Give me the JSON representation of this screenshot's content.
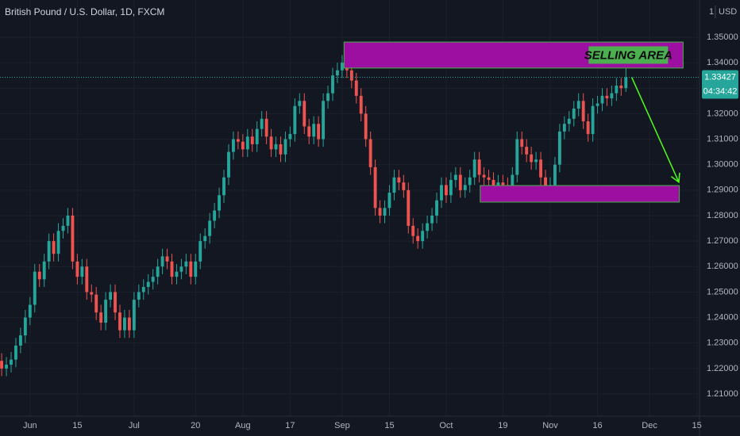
{
  "chart_data": {
    "type": "candlestick",
    "title": "British Pound / U.S. Dollar, 1D, FXCM",
    "currency": "USD",
    "scale_prefix": "1",
    "countdown": "04:34:42",
    "up_color": "#26a69a",
    "down_color": "#ef5350",
    "grid": true,
    "xlim": [
      -0.35,
      147.4
    ],
    "ylim": [
      1.2013,
      1.3646
    ],
    "xticks": [
      {
        "value": 6,
        "label": "Jun"
      },
      {
        "value": 16,
        "label": "15"
      },
      {
        "value": 28,
        "label": "Jul"
      },
      {
        "value": 41,
        "label": "20"
      },
      {
        "value": 51,
        "label": "Aug"
      },
      {
        "value": 61,
        "label": "17"
      },
      {
        "value": 72,
        "label": "Sep"
      },
      {
        "value": 82,
        "label": "15"
      },
      {
        "value": 94,
        "label": "Oct"
      },
      {
        "value": 106,
        "label": "19"
      },
      {
        "value": 116,
        "label": "Nov"
      },
      {
        "value": 126,
        "label": "16"
      },
      {
        "value": 137,
        "label": "Dec"
      },
      {
        "value": 147,
        "label": "15"
      }
    ],
    "yticks": [
      {
        "value": 1.21,
        "label": "1.21000"
      },
      {
        "value": 1.22,
        "label": "1.22000"
      },
      {
        "value": 1.23,
        "label": "1.23000"
      },
      {
        "value": 1.24,
        "label": "1.24000"
      },
      {
        "value": 1.25,
        "label": "1.25000"
      },
      {
        "value": 1.26,
        "label": "1.26000"
      },
      {
        "value": 1.27,
        "label": "1.27000"
      },
      {
        "value": 1.28,
        "label": "1.28000"
      },
      {
        "value": 1.29,
        "label": "1.29000"
      },
      {
        "value": 1.3,
        "label": "1.30000"
      },
      {
        "value": 1.31,
        "label": "1.31000"
      },
      {
        "value": 1.32,
        "label": "1.32000"
      },
      {
        "value": 1.33,
        "label": "1.33000"
      },
      {
        "value": 1.34,
        "label": "1.34000"
      },
      {
        "value": 1.35,
        "label": "1.35000"
      }
    ],
    "open": [
      1.223,
      1.22,
      1.2215,
      1.2235,
      1.229,
      1.233,
      1.24,
      1.245,
      1.258,
      1.255,
      1.262,
      1.27,
      1.265,
      1.274,
      1.276,
      1.28,
      1.262,
      1.256,
      1.26,
      1.25,
      1.249,
      1.242,
      1.238,
      1.247,
      1.25,
      1.242,
      1.235,
      1.24,
      1.235,
      1.247,
      1.25,
      1.252,
      1.254,
      1.256,
      1.26,
      1.264,
      1.262,
      1.256,
      1.258,
      1.26,
      1.262,
      1.256,
      1.262,
      1.27,
      1.272,
      1.278,
      1.282,
      1.288,
      1.295,
      1.305,
      1.31,
      1.309,
      1.306,
      1.311,
      1.308,
      1.314,
      1.318,
      1.311,
      1.306,
      1.308,
      1.304,
      1.31,
      1.312,
      1.323,
      1.325,
      1.315,
      1.311,
      1.316,
      1.31,
      1.325,
      1.328,
      1.335,
      1.337,
      1.34,
      1.337,
      1.333,
      1.327,
      1.32,
      1.31,
      1.299,
      1.283,
      1.28,
      1.283,
      1.289,
      1.295,
      1.293,
      1.29,
      1.276,
      1.272,
      1.27,
      1.274,
      1.277,
      1.28,
      1.286,
      1.292,
      1.288,
      1.294,
      1.296,
      1.29,
      1.292,
      1.295,
      1.302,
      1.296,
      1.295,
      1.294,
      1.29,
      1.293,
      1.292,
      1.29,
      1.296,
      1.31,
      1.307,
      1.304,
      1.301,
      1.302,
      1.295,
      1.29,
      1.292,
      1.3,
      1.313,
      1.316,
      1.318,
      1.322,
      1.325,
      1.317,
      1.312,
      1.323,
      1.324,
      1.327,
      1.326,
      1.328,
      1.331,
      1.33
    ],
    "high": [
      1.226,
      1.2245,
      1.2265,
      1.232,
      1.236,
      1.243,
      1.248,
      1.261,
      1.261,
      1.265,
      1.273,
      1.273,
      1.277,
      1.279,
      1.283,
      1.283,
      1.265,
      1.263,
      1.263,
      1.253,
      1.252,
      1.245,
      1.25,
      1.253,
      1.253,
      1.245,
      1.243,
      1.243,
      1.25,
      1.253,
      1.255,
      1.257,
      1.259,
      1.263,
      1.267,
      1.267,
      1.265,
      1.261,
      1.263,
      1.265,
      1.265,
      1.265,
      1.273,
      1.275,
      1.281,
      1.285,
      1.291,
      1.298,
      1.308,
      1.313,
      1.313,
      1.312,
      1.314,
      1.314,
      1.317,
      1.321,
      1.321,
      1.314,
      1.311,
      1.311,
      1.313,
      1.315,
      1.326,
      1.328,
      1.328,
      1.318,
      1.319,
      1.319,
      1.328,
      1.331,
      1.338,
      1.34,
      1.343,
      1.343,
      1.34,
      1.336,
      1.33,
      1.323,
      1.313,
      1.302,
      1.286,
      1.286,
      1.292,
      1.298,
      1.298,
      1.296,
      1.293,
      1.279,
      1.275,
      1.277,
      1.28,
      1.283,
      1.289,
      1.295,
      1.295,
      1.297,
      1.299,
      1.299,
      1.295,
      1.298,
      1.305,
      1.305,
      1.299,
      1.298,
      1.297,
      1.296,
      1.296,
      1.295,
      1.299,
      1.313,
      1.313,
      1.31,
      1.307,
      1.305,
      1.305,
      1.298,
      1.295,
      1.303,
      1.316,
      1.319,
      1.321,
      1.325,
      1.328,
      1.328,
      1.32,
      1.326,
      1.327,
      1.33,
      1.33,
      1.331,
      1.334,
      1.334,
      1.3398
    ],
    "low": [
      1.217,
      1.217,
      1.2185,
      1.2205,
      1.226,
      1.23,
      1.237,
      1.242,
      1.252,
      1.252,
      1.259,
      1.262,
      1.262,
      1.271,
      1.273,
      1.259,
      1.253,
      1.253,
      1.247,
      1.246,
      1.239,
      1.235,
      1.235,
      1.244,
      1.239,
      1.232,
      1.232,
      1.232,
      1.232,
      1.244,
      1.247,
      1.249,
      1.251,
      1.253,
      1.257,
      1.259,
      1.253,
      1.253,
      1.255,
      1.257,
      1.253,
      1.253,
      1.259,
      1.267,
      1.269,
      1.275,
      1.279,
      1.285,
      1.292,
      1.302,
      1.306,
      1.303,
      1.303,
      1.305,
      1.305,
      1.311,
      1.308,
      1.303,
      1.303,
      1.301,
      1.301,
      1.307,
      1.309,
      1.32,
      1.312,
      1.308,
      1.308,
      1.307,
      1.307,
      1.322,
      1.325,
      1.332,
      1.334,
      1.334,
      1.33,
      1.324,
      1.317,
      1.307,
      1.296,
      1.28,
      1.277,
      1.277,
      1.28,
      1.286,
      1.29,
      1.287,
      1.273,
      1.269,
      1.267,
      1.267,
      1.271,
      1.274,
      1.277,
      1.283,
      1.285,
      1.285,
      1.291,
      1.287,
      1.287,
      1.289,
      1.292,
      1.293,
      1.292,
      1.291,
      1.287,
      1.287,
      1.289,
      1.287,
      1.287,
      1.293,
      1.304,
      1.301,
      1.298,
      1.298,
      1.292,
      1.287,
      1.287,
      1.289,
      1.297,
      1.31,
      1.313,
      1.315,
      1.319,
      1.314,
      1.309,
      1.309,
      1.32,
      1.321,
      1.323,
      1.323,
      1.325,
      1.327,
      1.3285
    ],
    "close": [
      1.22,
      1.2215,
      1.2235,
      1.229,
      1.233,
      1.24,
      1.245,
      1.258,
      1.255,
      1.262,
      1.27,
      1.265,
      1.274,
      1.276,
      1.28,
      1.262,
      1.256,
      1.26,
      1.25,
      1.249,
      1.242,
      1.238,
      1.247,
      1.25,
      1.242,
      1.235,
      1.24,
      1.235,
      1.247,
      1.25,
      1.252,
      1.254,
      1.256,
      1.26,
      1.264,
      1.262,
      1.256,
      1.258,
      1.26,
      1.262,
      1.256,
      1.262,
      1.27,
      1.272,
      1.278,
      1.282,
      1.288,
      1.295,
      1.305,
      1.31,
      1.309,
      1.306,
      1.311,
      1.308,
      1.314,
      1.318,
      1.311,
      1.306,
      1.308,
      1.304,
      1.31,
      1.312,
      1.323,
      1.325,
      1.315,
      1.311,
      1.316,
      1.31,
      1.325,
      1.328,
      1.335,
      1.337,
      1.34,
      1.337,
      1.333,
      1.327,
      1.32,
      1.31,
      1.299,
      1.283,
      1.28,
      1.283,
      1.289,
      1.295,
      1.293,
      1.29,
      1.276,
      1.272,
      1.27,
      1.274,
      1.277,
      1.28,
      1.286,
      1.292,
      1.288,
      1.294,
      1.296,
      1.29,
      1.292,
      1.295,
      1.302,
      1.296,
      1.295,
      1.294,
      1.29,
      1.293,
      1.292,
      1.29,
      1.296,
      1.31,
      1.307,
      1.304,
      1.301,
      1.302,
      1.295,
      1.29,
      1.292,
      1.3,
      1.313,
      1.316,
      1.318,
      1.322,
      1.325,
      1.317,
      1.312,
      1.323,
      1.324,
      1.327,
      1.326,
      1.328,
      1.331,
      1.33,
      1.33427
    ],
    "zones": [
      {
        "label": "SELLING AREA",
        "x": [
          72.4,
          144.1
        ],
        "y": [
          1.3379,
          1.3481
        ]
      },
      {
        "x": [
          101.2,
          143.3
        ],
        "y": [
          1.2853,
          1.2918
        ]
      }
    ],
    "arrow": {
      "x": [
        133.2,
        143.2
      ],
      "y": [
        1.3344,
        1.2931
      ]
    }
  }
}
